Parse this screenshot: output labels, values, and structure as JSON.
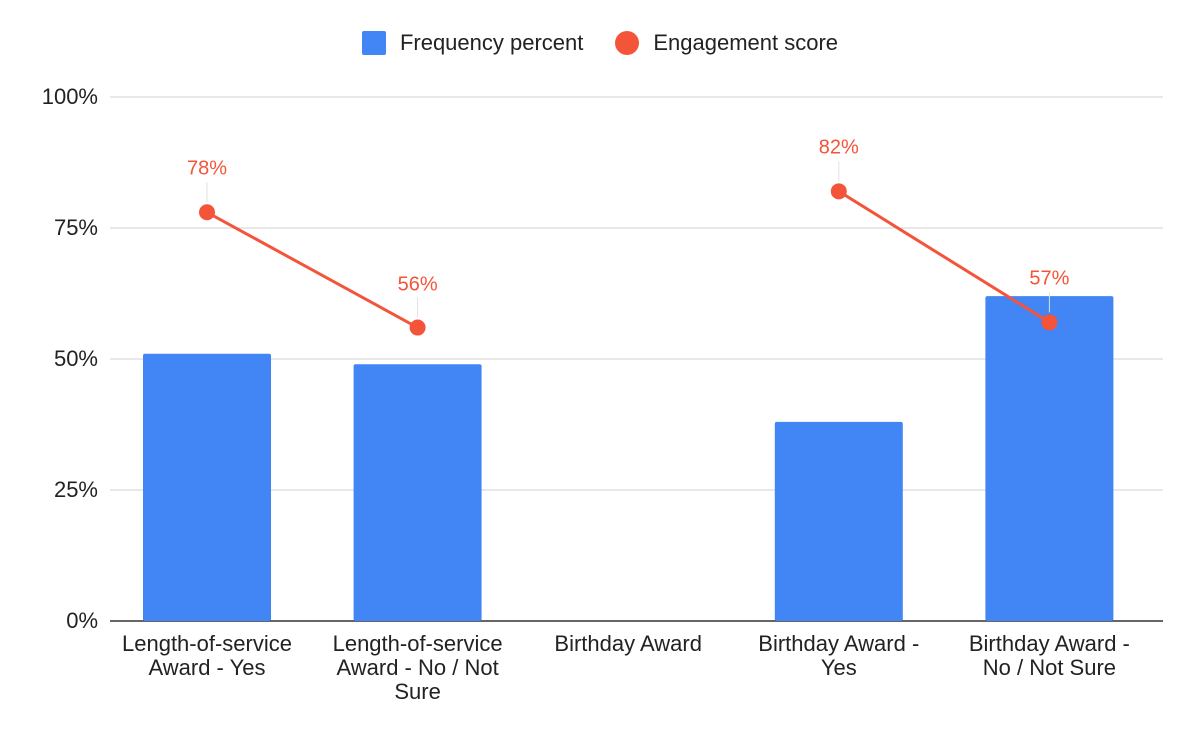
{
  "chart_data": {
    "type": "bar",
    "title": "",
    "xlabel": "",
    "ylabel": "",
    "ylim": [
      0,
      100
    ],
    "yticks": [
      "0%",
      "25%",
      "50%",
      "75%",
      "100%"
    ],
    "categories": [
      "Length-of-service Award - Yes",
      "Length-of-service Award - No / Not Sure",
      "Birthday Award",
      "Birthday Award - Yes",
      "Birthday Award - No / Not Sure"
    ],
    "category_display": [
      "Length-of-service\nAward - Yes",
      "Length-of-service\nAward - No / Not\nSure",
      "Birthday Award",
      "Birthday Award -\nYes",
      "Birthday Award -\nNo / Not Sure"
    ],
    "series": [
      {
        "name": "Frequency percent",
        "type": "bar",
        "color": "#4285f4",
        "values": [
          51,
          49,
          null,
          38,
          62
        ]
      },
      {
        "name": "Engagement score",
        "type": "line",
        "color": "#f4543a",
        "values": [
          78,
          56,
          null,
          82,
          57
        ],
        "labels": [
          "78%",
          "56%",
          null,
          "82%",
          "57%"
        ]
      }
    ],
    "legend_position": "top-center",
    "grid": true
  }
}
